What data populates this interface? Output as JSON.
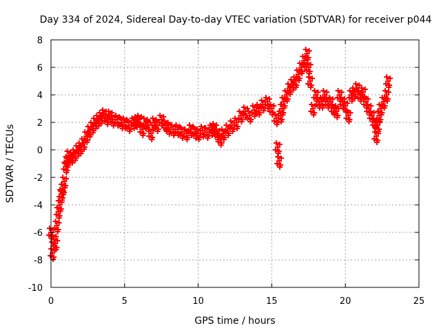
{
  "chart_data": {
    "type": "scatter",
    "title": "Day 334 of 2024, Sidereal Day-to-day VTEC variation (SDTVAR) for receiver p044",
    "xlabel": "GPS time / hours",
    "ylabel": "SDTVAR / TECUs",
    "xlim": [
      0,
      25
    ],
    "ylim": [
      -10,
      8
    ],
    "xticks": [
      0,
      5,
      10,
      15,
      20,
      25
    ],
    "yticks": [
      -10,
      -8,
      -6,
      -4,
      -2,
      0,
      2,
      4,
      6,
      8
    ],
    "grid": true,
    "marker": "+",
    "color": "#ff0000",
    "series": [
      {
        "name": "SDTVAR",
        "x": [
          0.0,
          0.1,
          0.2,
          0.3,
          0.4,
          0.5,
          0.6,
          0.7,
          0.8,
          0.9,
          1.0,
          1.1,
          1.2,
          1.4,
          1.6,
          1.8,
          2.0,
          2.2,
          2.4,
          2.6,
          2.8,
          3.0,
          3.2,
          3.4,
          3.6,
          3.8,
          4.0,
          4.2,
          4.5,
          4.8,
          5.0,
          5.3,
          5.6,
          5.8,
          6.0,
          6.2,
          6.4,
          6.6,
          6.8,
          7.0,
          7.2,
          7.5,
          7.8,
          8.0,
          8.3,
          8.6,
          8.9,
          9.2,
          9.5,
          9.8,
          10.0,
          10.3,
          10.6,
          10.9,
          11.1,
          11.3,
          11.5,
          11.7,
          12.0,
          12.3,
          12.6,
          12.9,
          13.2,
          13.5,
          13.8,
          14.1,
          14.4,
          14.7,
          15.0,
          15.3,
          15.4,
          15.5,
          15.6,
          15.7,
          15.8,
          16.0,
          16.2,
          16.4,
          16.6,
          16.8,
          17.0,
          17.2,
          17.4,
          17.5,
          17.6,
          17.8,
          18.0,
          18.2,
          18.4,
          18.6,
          18.8,
          19.0,
          19.2,
          19.4,
          19.6,
          19.8,
          20.0,
          20.2,
          20.4,
          20.6,
          20.8,
          21.0,
          21.2,
          21.4,
          21.6,
          21.8,
          22.0,
          22.1,
          22.2,
          22.3,
          22.4,
          22.6,
          22.8,
          22.9
        ],
        "values": [
          -6.0,
          -7.5,
          -6.5,
          -6.8,
          -5.5,
          -4.5,
          -4.0,
          -3.2,
          -2.8,
          -2.3,
          -1.2,
          -0.8,
          -0.4,
          -0.5,
          -0.3,
          0.0,
          0.2,
          0.5,
          1.0,
          1.4,
          1.7,
          2.0,
          2.2,
          2.4,
          2.6,
          2.3,
          2.5,
          2.2,
          2.2,
          2.0,
          2.0,
          1.8,
          2.0,
          2.1,
          2.2,
          1.5,
          2.0,
          1.8,
          1.2,
          2.0,
          1.8,
          2.2,
          1.8,
          1.6,
          1.5,
          1.5,
          1.3,
          1.2,
          1.5,
          1.3,
          1.2,
          1.4,
          1.3,
          1.5,
          1.6,
          1.2,
          0.8,
          1.2,
          1.5,
          1.8,
          2.0,
          2.5,
          2.8,
          2.5,
          2.9,
          3.0,
          3.3,
          3.5,
          3.0,
          2.3,
          0.2,
          -0.8,
          2.5,
          3.0,
          3.5,
          4.0,
          4.5,
          4.8,
          5.0,
          5.5,
          6.0,
          6.5,
          7.0,
          6.0,
          5.0,
          3.0,
          4.0,
          3.5,
          3.5,
          4.0,
          3.5,
          3.5,
          3.0,
          2.8,
          4.0,
          3.5,
          3.2,
          2.5,
          4.0,
          4.2,
          4.5,
          4.0,
          4.2,
          3.5,
          3.0,
          2.5,
          2.0,
          1.0,
          1.8,
          2.5,
          3.0,
          3.5,
          4.0,
          5.0
        ]
      }
    ]
  }
}
